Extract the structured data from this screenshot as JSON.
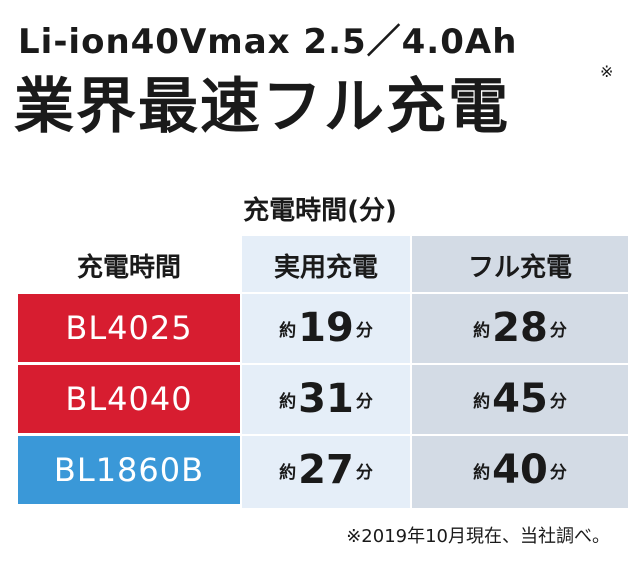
{
  "header": {
    "line1": "Li-ion40Vmax 2.5／4.0Ah",
    "line2": "業界最速フル充電",
    "mark": "※"
  },
  "table": {
    "caption": "充電時間(分)",
    "columns": [
      "充電時間",
      "実用充電",
      "フル充電"
    ],
    "rows": [
      {
        "model": "BL4025",
        "color": "#d71d30",
        "practical": {
          "prefix": "約",
          "value": 19,
          "suffix": "分"
        },
        "full": {
          "prefix": "約",
          "value": 28,
          "suffix": "分"
        }
      },
      {
        "model": "BL4040",
        "color": "#d71d30",
        "practical": {
          "prefix": "約",
          "value": 31,
          "suffix": "分"
        },
        "full": {
          "prefix": "約",
          "value": 45,
          "suffix": "分"
        }
      },
      {
        "model": "BL1860B",
        "color": "#3a98d8",
        "practical": {
          "prefix": "約",
          "value": 27,
          "suffix": "分"
        },
        "full": {
          "prefix": "約",
          "value": 40,
          "suffix": "分"
        }
      }
    ]
  },
  "footnote": "※2019年10月現在、当社調べ。"
}
